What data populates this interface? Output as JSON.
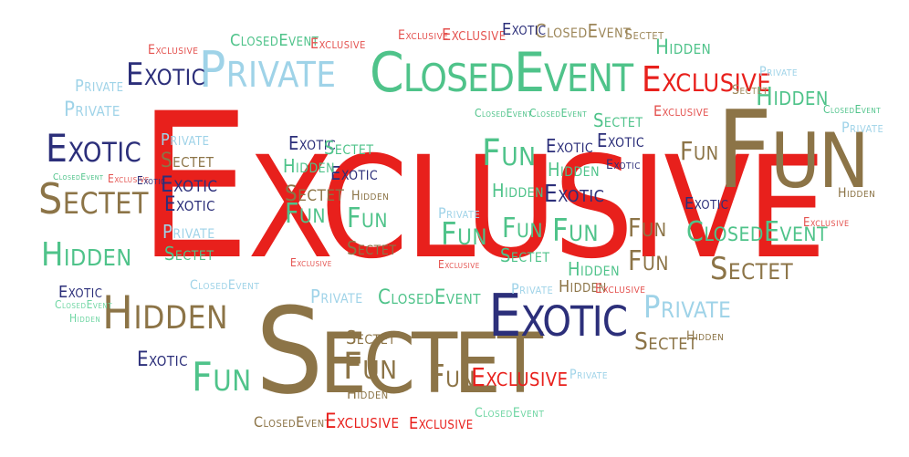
{
  "words": {
    "exclusive": "Exclusive",
    "fun": "Fun",
    "closed_event": "ClosedEvent",
    "private": "Private",
    "exotic": "Exotic",
    "sectet": "Sectet",
    "hidden": "Hidden"
  },
  "colors": {
    "red": "#e8201c",
    "navy": "#2c2f7a",
    "light_blue": "#9fd3e8",
    "green": "#4fc38a",
    "brown": "#8c7447"
  }
}
